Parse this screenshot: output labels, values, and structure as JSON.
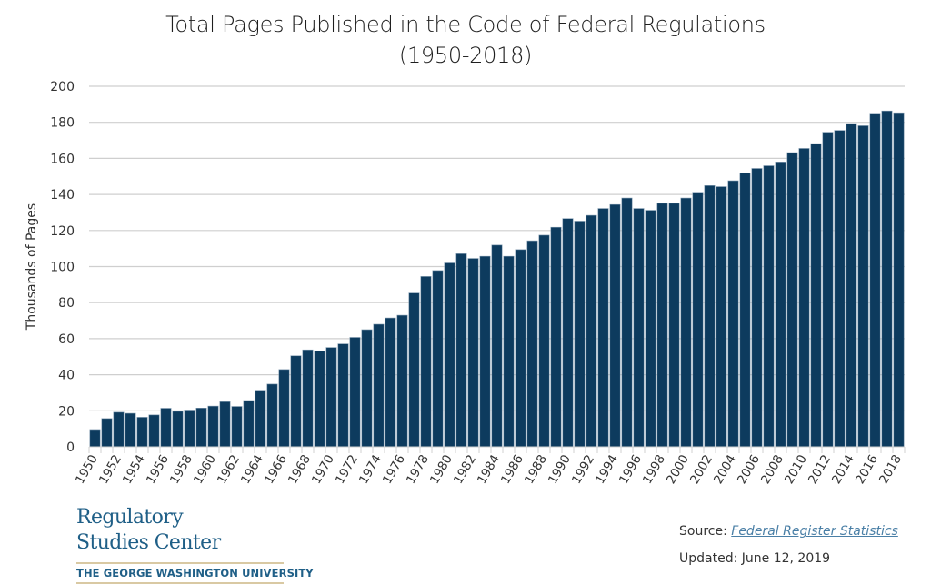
{
  "chart_data": {
    "type": "bar",
    "title": "Total Pages Published in the Code of Federal Regulations",
    "subtitle": "(1950-2018)",
    "xlabel": "",
    "ylabel": "Thousands of Pages",
    "ylim": [
      0,
      200
    ],
    "yticks": [
      0,
      20,
      40,
      60,
      80,
      100,
      120,
      140,
      160,
      180,
      200
    ],
    "grid": true,
    "legend": "none",
    "bar_color": "#0d3b5e",
    "categories": [
      "1950",
      "1951",
      "1952",
      "1953",
      "1954",
      "1955",
      "1956",
      "1957",
      "1958",
      "1959",
      "1960",
      "1961",
      "1962",
      "1963",
      "1964",
      "1965",
      "1966",
      "1967",
      "1968",
      "1969",
      "1970",
      "1971",
      "1972",
      "1973",
      "1974",
      "1975",
      "1976",
      "1977",
      "1978",
      "1979",
      "1980",
      "1981",
      "1982",
      "1983",
      "1984",
      "1985",
      "1986",
      "1987",
      "1988",
      "1989",
      "1990",
      "1991",
      "1992",
      "1993",
      "1994",
      "1995",
      "1996",
      "1997",
      "1998",
      "1999",
      "2000",
      "2001",
      "2002",
      "2003",
      "2004",
      "2005",
      "2006",
      "2007",
      "2008",
      "2009",
      "2010",
      "2011",
      "2012",
      "2013",
      "2014",
      "2015",
      "2016",
      "2017",
      "2018"
    ],
    "xtick_labels": [
      "1950",
      "1952",
      "1954",
      "1956",
      "1958",
      "1960",
      "1962",
      "1964",
      "1966",
      "1968",
      "1970",
      "1972",
      "1974",
      "1976",
      "1978",
      "1980",
      "1982",
      "1984",
      "1986",
      "1988",
      "1990",
      "1992",
      "1994",
      "1996",
      "1998",
      "2000",
      "2002",
      "2004",
      "2006",
      "2008",
      "2010",
      "2012",
      "2014",
      "2016",
      "2018"
    ],
    "values": [
      9.6,
      15.7,
      19.2,
      18.6,
      16.4,
      17.7,
      21.4,
      19.7,
      20.4,
      21.5,
      22.6,
      25.0,
      22.4,
      25.7,
      31.4,
      34.8,
      42.9,
      50.5,
      53.8,
      53.1,
      55.1,
      57.1,
      60.7,
      65.0,
      68.0,
      71.5,
      73.0,
      85.3,
      94.5,
      97.8,
      102.0,
      107.1,
      104.5,
      105.7,
      111.9,
      105.7,
      109.4,
      114.3,
      117.4,
      121.8,
      126.6,
      125.2,
      128.4,
      132.2,
      134.4,
      138.0,
      132.2,
      131.2,
      135.1,
      135.1,
      138.0,
      141.2,
      144.9,
      144.3,
      147.6,
      151.9,
      154.4,
      155.9,
      158.0,
      163.2,
      165.5,
      168.2,
      174.5,
      175.5,
      179.3,
      178.1,
      185.0,
      186.3,
      185.3
    ]
  },
  "logo": {
    "line1": "Regulatory",
    "line2": "Studies Center",
    "university": "THE GEORGE WASHINGTON UNIVERSITY",
    "color": "#1f5f87"
  },
  "footer": {
    "source_prefix": "Source: ",
    "source_link": "Federal Register Statistics",
    "updated": "Updated: June 12, 2019"
  }
}
